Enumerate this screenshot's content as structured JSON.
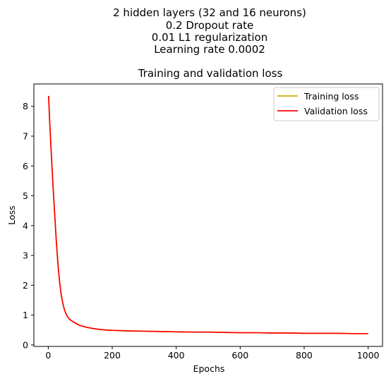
{
  "figure": {
    "suptitle_lines": [
      "2 hidden layers (32 and 16 neurons)",
      "0.2 Dropout rate",
      "0.01 L1 regularization",
      "Learning rate 0.0002"
    ]
  },
  "chart_data": {
    "type": "line",
    "title": "Training and validation loss",
    "xlabel": "Epochs",
    "ylabel": "Loss",
    "xlim": [
      -45,
      1045
    ],
    "ylim": [
      -0.05,
      8.75
    ],
    "xticks": [
      0,
      200,
      400,
      600,
      800,
      1000
    ],
    "yticks": [
      0,
      1,
      2,
      3,
      4,
      5,
      6,
      7,
      8
    ],
    "grid": false,
    "legend_position": "top-right",
    "series": [
      {
        "name": "Training loss",
        "color": "#ccb300",
        "x": [
          1,
          5,
          10,
          15,
          20,
          25,
          30,
          35,
          40,
          45,
          50,
          55,
          60,
          65,
          70,
          80,
          90,
          100,
          120,
          140,
          160,
          180,
          200,
          250,
          300,
          350,
          400,
          450,
          500,
          550,
          600,
          650,
          700,
          750,
          800,
          850,
          900,
          950,
          1000
        ],
        "y": [
          8.35,
          7.35,
          6.3,
          5.3,
          4.4,
          3.5,
          2.75,
          2.15,
          1.72,
          1.42,
          1.2,
          1.05,
          0.95,
          0.88,
          0.83,
          0.76,
          0.7,
          0.65,
          0.59,
          0.55,
          0.52,
          0.5,
          0.49,
          0.47,
          0.46,
          0.45,
          0.44,
          0.43,
          0.43,
          0.42,
          0.41,
          0.41,
          0.4,
          0.4,
          0.39,
          0.39,
          0.39,
          0.38,
          0.38
        ]
      },
      {
        "name": "Validation loss",
        "color": "#ff0000",
        "x": [
          1,
          5,
          10,
          15,
          20,
          25,
          30,
          35,
          40,
          45,
          50,
          55,
          60,
          65,
          70,
          80,
          90,
          100,
          120,
          140,
          160,
          180,
          200,
          250,
          300,
          350,
          400,
          450,
          500,
          550,
          600,
          650,
          700,
          750,
          800,
          850,
          900,
          950,
          1000
        ],
        "y": [
          8.35,
          7.35,
          6.3,
          5.3,
          4.4,
          3.5,
          2.75,
          2.15,
          1.72,
          1.42,
          1.2,
          1.05,
          0.95,
          0.88,
          0.83,
          0.76,
          0.7,
          0.65,
          0.59,
          0.55,
          0.52,
          0.5,
          0.49,
          0.47,
          0.46,
          0.45,
          0.44,
          0.43,
          0.43,
          0.42,
          0.41,
          0.41,
          0.4,
          0.4,
          0.39,
          0.39,
          0.39,
          0.38,
          0.38
        ]
      }
    ]
  }
}
